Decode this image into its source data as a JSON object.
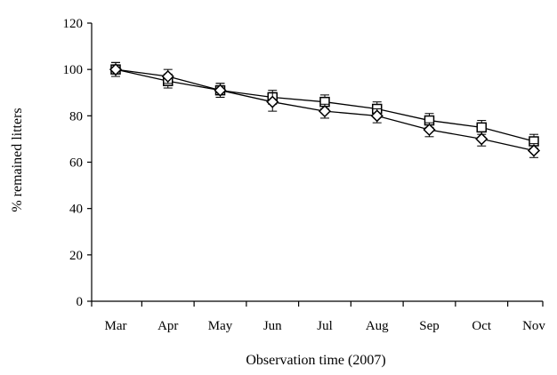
{
  "chart_data": {
    "type": "line",
    "xlabel": "Observation time (2007)",
    "ylabel": "% remained litters",
    "categories": [
      "Mar",
      "Apr",
      "May",
      "Jun",
      "Jul",
      "Aug",
      "Sep",
      "Oct",
      "Nov"
    ],
    "ylim": [
      0,
      120
    ],
    "yticks": [
      "0",
      "20",
      "40",
      "60",
      "80",
      "100",
      "120"
    ],
    "grid": false,
    "legend": "none",
    "series": [
      {
        "marker": "square",
        "values": [
          100,
          95,
          91,
          88,
          86,
          83,
          78,
          75,
          69
        ],
        "error": [
          3,
          3,
          3,
          3,
          3,
          3,
          3,
          3,
          3
        ]
      },
      {
        "marker": "diamond",
        "values": [
          100,
          97,
          91,
          86,
          82,
          80,
          74,
          70,
          65
        ],
        "error": [
          3,
          3,
          3,
          4,
          3,
          3,
          3,
          3,
          3
        ]
      }
    ],
    "colors": {
      "line": "#000000",
      "marker_fill": "#ffffff"
    }
  }
}
